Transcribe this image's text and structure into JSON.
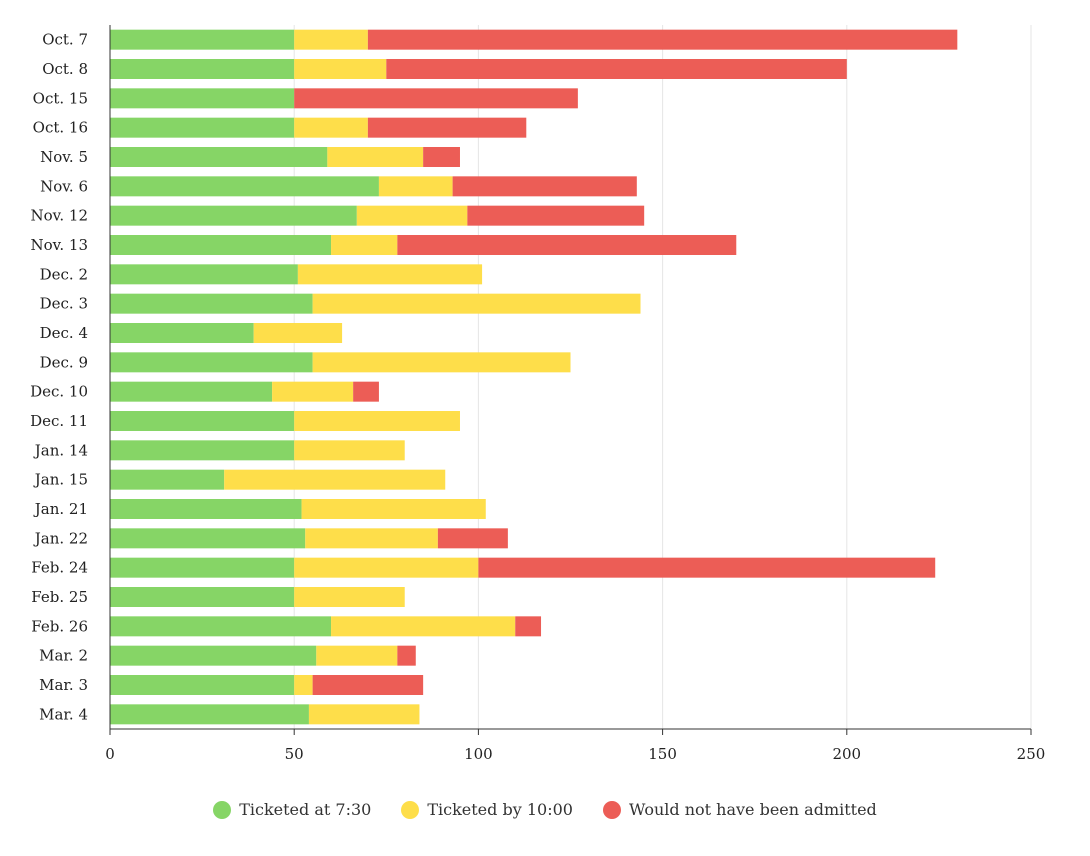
{
  "chart_data": {
    "type": "bar",
    "orientation": "horizontal",
    "stacked": true,
    "title": "",
    "xlabel": "",
    "ylabel": "",
    "xlim": [
      0,
      250
    ],
    "xticks": [
      0,
      50,
      100,
      150,
      200,
      250
    ],
    "grid": true,
    "legend_position": "bottom",
    "categories": [
      "Oct. 7",
      "Oct. 8",
      "Oct. 15",
      "Oct. 16",
      "Nov. 5",
      "Nov. 6",
      "Nov. 12",
      "Nov. 13",
      "Dec. 2",
      "Dec. 3",
      "Dec. 4",
      "Dec. 9",
      "Dec. 10",
      "Dec. 11",
      "Jan. 14",
      "Jan. 15",
      "Jan. 21",
      "Jan. 22",
      "Feb. 24",
      "Feb. 25",
      "Feb. 26",
      "Mar. 2",
      "Mar. 3",
      "Mar. 4"
    ],
    "series": [
      {
        "name": "Ticketed at 7:30",
        "color": "#86d566",
        "values": [
          50,
          50,
          50,
          50,
          59,
          73,
          67,
          60,
          51,
          55,
          39,
          55,
          44,
          50,
          50,
          31,
          52,
          53,
          50,
          50,
          60,
          56,
          50,
          54
        ]
      },
      {
        "name": "Ticketed by 10:00",
        "color": "#fede4a",
        "values": [
          20,
          25,
          0,
          20,
          26,
          20,
          30,
          18,
          50,
          89,
          24,
          70,
          22,
          45,
          30,
          60,
          50,
          36,
          50,
          30,
          50,
          22,
          5,
          30
        ]
      },
      {
        "name": "Would not have been admitted",
        "color": "#ec5d56",
        "values": [
          160,
          125,
          77,
          43,
          10,
          50,
          48,
          92,
          0,
          0,
          0,
          0,
          7,
          0,
          0,
          0,
          0,
          19,
          124,
          0,
          7,
          5,
          30,
          0
        ]
      }
    ]
  }
}
